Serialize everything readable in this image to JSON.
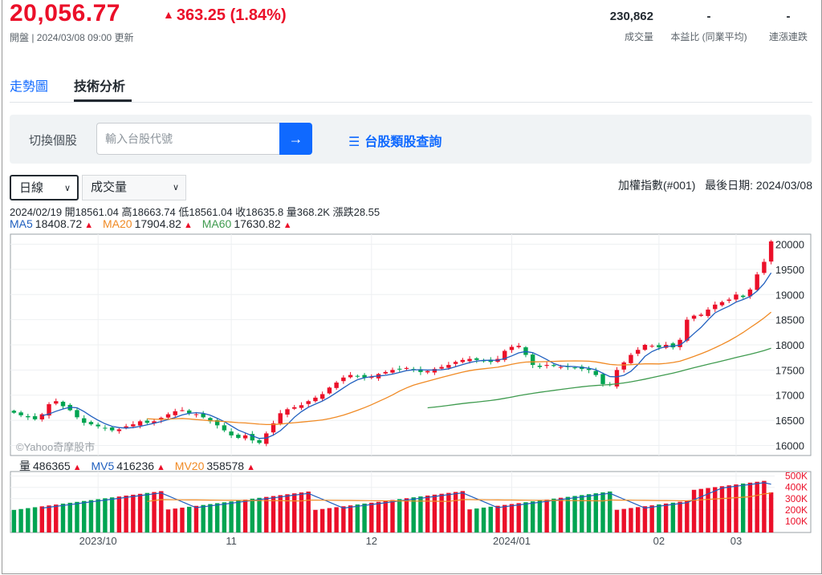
{
  "quote": {
    "price": "20,056.77",
    "change_arrow": "▲",
    "change": "363.25 (1.84%)",
    "status_line": "開盤 | 2024/03/08 09:00 更新",
    "up_color": "#eb0f29",
    "down_color": "#00a451"
  },
  "stats": [
    {
      "value": "230,862",
      "label": "成交量"
    },
    {
      "value": "-",
      "label": "本益比 (同業平均)"
    },
    {
      "value": "-",
      "label": "連漲連跌"
    }
  ],
  "tabs": [
    {
      "label": "走勢圖",
      "active": false
    },
    {
      "label": "技術分析",
      "active": true
    }
  ],
  "search": {
    "label": "切換個股",
    "placeholder": "輸入台股代號",
    "button_icon": "arrow-right-icon",
    "category_icon": "list-icon",
    "category_link": "台股類股查詢"
  },
  "controls": {
    "period": "日線",
    "indicator": "成交量",
    "index_name": "加權指數(#001)",
    "last_date": "最後日期: 2024/03/08"
  },
  "ohlc_line": "2024/02/19 開18561.04 高18663.74 低18561.04 收18635.8 量368.2K 漲跌28.55",
  "ma_legend": [
    {
      "label": "MA5",
      "value": "18408.72",
      "color": "#1f5fbf"
    },
    {
      "label": "MA20",
      "value": "17904.82",
      "color": "#f08a24"
    },
    {
      "label": "MA60",
      "value": "17630.82",
      "color": "#3f9b4f"
    }
  ],
  "vol_legend": [
    {
      "label": "量",
      "value": "486365",
      "color": "#232a31"
    },
    {
      "label": "MV5",
      "value": "416236",
      "color": "#1f5fbf"
    },
    {
      "label": "MV20",
      "value": "358578",
      "color": "#f08a24"
    }
  ],
  "watermark": "©Yahoo奇摩股市",
  "chart_data": {
    "type": "candlestick",
    "price_ylim": [
      15800,
      20200
    ],
    "price_ticks": [
      16000,
      16500,
      17000,
      17500,
      18000,
      18500,
      19000,
      19500,
      20000
    ],
    "volume_ylim": [
      0,
      540000
    ],
    "volume_ticks": [
      {
        "v": 100000,
        "label": "100K"
      },
      {
        "v": 200000,
        "label": "200K"
      },
      {
        "v": 300000,
        "label": "300K"
      },
      {
        "v": 400000,
        "label": "400K"
      },
      {
        "v": 500000,
        "label": "500K"
      }
    ],
    "x_labels": [
      {
        "i": 12,
        "label": "2023/10"
      },
      {
        "i": 31,
        "label": "11"
      },
      {
        "i": 51,
        "label": "12"
      },
      {
        "i": 71,
        "label": "2024/01"
      },
      {
        "i": 92,
        "label": "02"
      },
      {
        "i": 103,
        "label": "03"
      }
    ],
    "close": [
      16650,
      16600,
      16560,
      16520,
      16620,
      16820,
      16880,
      16780,
      16700,
      16560,
      16450,
      16420,
      16380,
      16350,
      16300,
      16320,
      16380,
      16420,
      16480,
      16450,
      16480,
      16550,
      16620,
      16680,
      16700,
      16640,
      16620,
      16560,
      16480,
      16400,
      16300,
      16200,
      16150,
      16200,
      16100,
      16050,
      16240,
      16440,
      16640,
      16720,
      16760,
      16800,
      16880,
      16950,
      17020,
      17150,
      17250,
      17350,
      17400,
      17380,
      17350,
      17360,
      17420,
      17460,
      17500,
      17520,
      17540,
      17500,
      17460,
      17480,
      17520,
      17560,
      17600,
      17660,
      17700,
      17720,
      17700,
      17680,
      17660,
      17720,
      17880,
      17960,
      17980,
      17800,
      17600,
      17560,
      17600,
      17580,
      17560,
      17560,
      17540,
      17520,
      17500,
      17400,
      17220,
      17200,
      17500,
      17650,
      17800,
      17900,
      18000,
      17980,
      17950,
      18000,
      17950,
      18100,
      18500,
      18580,
      18600,
      18700,
      18800,
      18850,
      18900,
      19000,
      18950,
      19100,
      19400,
      19650,
      20056
    ]
  }
}
